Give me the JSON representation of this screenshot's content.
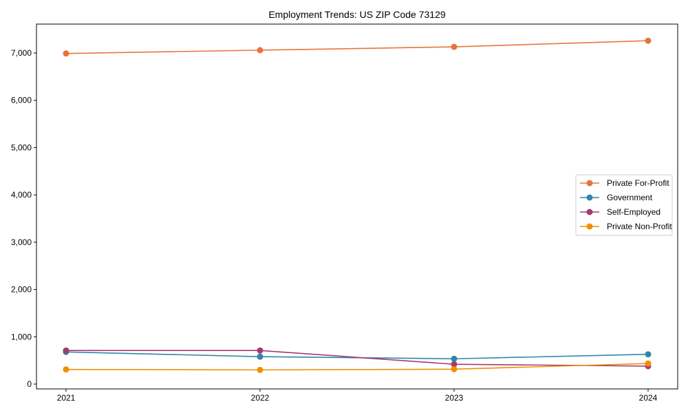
{
  "chart_data": {
    "type": "line",
    "title": "Employment Trends: US ZIP Code 73129",
    "xlabel": "",
    "ylabel": "",
    "x": [
      "2021",
      "2022",
      "2023",
      "2024"
    ],
    "ylim": [
      0,
      7600
    ],
    "yticks": [
      0,
      1000,
      2000,
      3000,
      4000,
      5000,
      6000,
      7000
    ],
    "ytick_labels": [
      "0",
      "1,000",
      "2,000",
      "3,000",
      "4,000",
      "5,000",
      "6,000",
      "7,000"
    ],
    "grid": false,
    "legend_position": "center right",
    "series": [
      {
        "name": "Private For-Profit",
        "color": "#E8743B",
        "values": [
          6990,
          7060,
          7130,
          7260
        ]
      },
      {
        "name": "Government",
        "color": "#2E86AB",
        "values": [
          680,
          580,
          535,
          630
        ]
      },
      {
        "name": "Self-Employed",
        "color": "#A23B72",
        "values": [
          710,
          710,
          420,
          380
        ]
      },
      {
        "name": "Private Non-Profit",
        "color": "#F18F01",
        "values": [
          310,
          300,
          315,
          435
        ]
      }
    ]
  }
}
